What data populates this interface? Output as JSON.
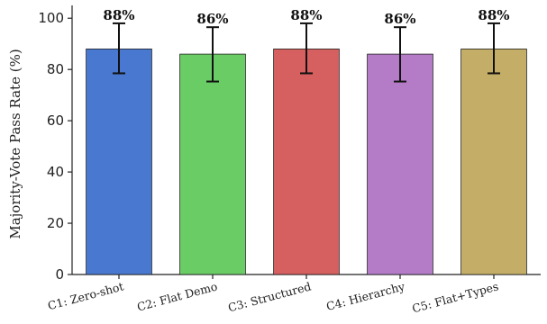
{
  "chart_data": {
    "type": "bar",
    "ylabel": "Majority-Vote Pass Rate (%)",
    "xlabel": "",
    "ylim": [
      0,
      105
    ],
    "yticks": [
      0,
      20,
      40,
      60,
      80,
      100
    ],
    "grid": false,
    "categories": [
      "C1: Zero-shot",
      "C2: Flat Demo",
      "C3: Structured",
      "C4: Hierarchy",
      "C5: Flat+Types"
    ],
    "values": [
      88,
      86,
      88,
      86,
      88
    ],
    "error_low": [
      78.5,
      75.3,
      78.5,
      75.3,
      78.5
    ],
    "error_high": [
      98,
      96.5,
      98,
      96.5,
      98
    ],
    "data_labels": [
      "88%",
      "86%",
      "88%",
      "86%",
      "88%"
    ],
    "colors": [
      "#4878cf",
      "#6acc65",
      "#d65f5f",
      "#b47cc7",
      "#c4ad66"
    ]
  }
}
